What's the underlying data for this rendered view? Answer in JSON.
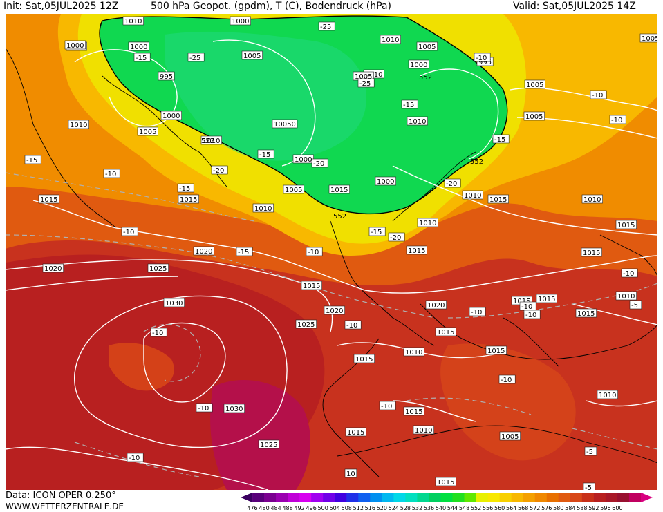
{
  "header": {
    "init": "Init: Sat,05JUL2025 12Z",
    "title": "500 hPa Geopot. (gpdm), T (C), Bodendruck (hPa)",
    "valid": "Valid: Sat,05JUL2025 14Z"
  },
  "footer": {
    "data": "Data: ICON OPER 0.250°",
    "site": "WWW.WETTERZENTRALE.DE"
  },
  "colors": {
    "legend": [
      "#3a0060",
      "#58007a",
      "#7a0090",
      "#9a00b0",
      "#c000d8",
      "#d800f0",
      "#a000f0",
      "#7000e8",
      "#4000e0",
      "#2030e8",
      "#1060f0",
      "#0090f0",
      "#00b8f0",
      "#00d8e8",
      "#00e0c0",
      "#00d890",
      "#00d060",
      "#00e040",
      "#20e020",
      "#60e800",
      "#e8f000",
      "#f8e800",
      "#f8d000",
      "#f8b800",
      "#f4a000",
      "#f08800",
      "#e87000",
      "#e05a10",
      "#d84818",
      "#c83018",
      "#b82020",
      "#a81828",
      "#981030",
      "#c00060",
      "#d80080"
    ],
    "green": "#10d850",
    "yellow": "#f0e000",
    "orange": "#f08c00",
    "red": "#c8321e",
    "darkred": "#a81a2a",
    "magenta": "#b4104a",
    "isobar": "#ffffff",
    "isotherm": "#b0b0b0"
  },
  "legend_values": [
    "476",
    "480",
    "484",
    "488",
    "492",
    "496",
    "500",
    "504",
    "508",
    "512",
    "516",
    "520",
    "524",
    "528",
    "532",
    "536",
    "540",
    "544",
    "548",
    "552",
    "556",
    "560",
    "564",
    "568",
    "572",
    "576",
    "580",
    "584",
    "588",
    "592",
    "596",
    "600"
  ],
  "pressure_labels": [
    "1010",
    "1000",
    "1005",
    "1000",
    "995",
    "1000",
    "1005",
    "1010",
    "1000",
    "1010",
    "1005",
    "1000",
    "1005",
    "995",
    "1000",
    "1005",
    "1010",
    "1005",
    "10050",
    "1010",
    "1000",
    "1005",
    "1000",
    "1010",
    "1005",
    "1005",
    "1010",
    "1015",
    "1015",
    "1015",
    "1020",
    "1020",
    "1025",
    "1030",
    "1025",
    "1030",
    "1025",
    "1020",
    "1020",
    "1015",
    "1015",
    "1010",
    "1015",
    "1015",
    "1015",
    "1010",
    "1015",
    "1015",
    "1015",
    "1015",
    "1010",
    "1015",
    "1010",
    "1015",
    "1015",
    "1010",
    "1015",
    "1015",
    "1005",
    "1010",
    "1010",
    "10"
  ],
  "temp_labels": [
    "-25",
    "-15",
    "-25",
    "-25",
    "-15",
    "-20",
    "-20",
    "-15",
    "-15",
    "-10",
    "-15",
    "-10",
    "-15",
    "-10",
    "-15",
    "-20",
    "-15",
    "-20",
    "-10",
    "-10",
    "-10",
    "-10",
    "-10",
    "-10",
    "-10",
    "-10",
    "-10",
    "-10",
    "-5",
    "-5",
    "-5",
    "-10",
    "-10",
    "-10"
  ],
  "height_labels": [
    "552",
    "552",
    "552",
    "552"
  ]
}
